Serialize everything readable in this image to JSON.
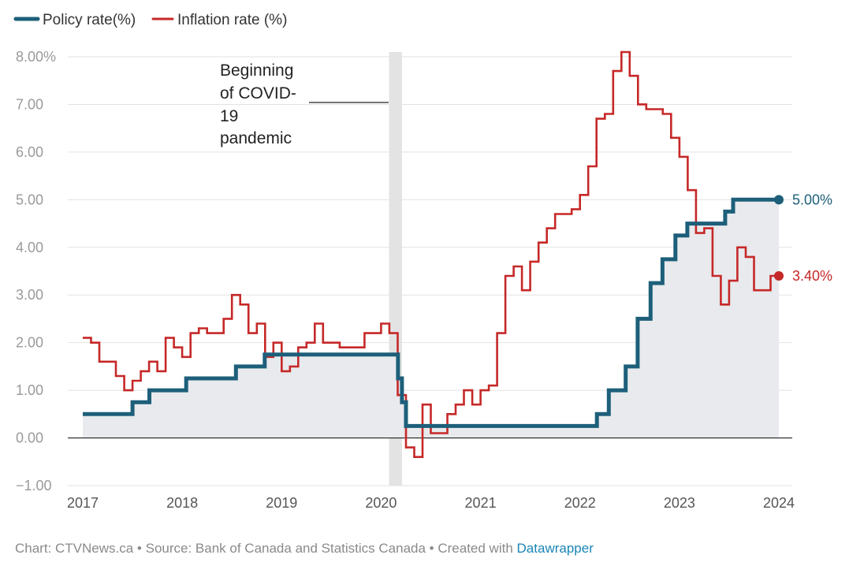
{
  "footer": {
    "credit": "Chart: CTVNews.ca",
    "sep1": " • ",
    "source": "Source: Bank of Canada and Statistics Canada",
    "sep2": " • ",
    "created": "Created with ",
    "tool": "Datawrapper"
  },
  "chart_data": {
    "type": "line",
    "title": "",
    "xlabel": "",
    "ylabel": "",
    "xlim": [
      2017,
      2024
    ],
    "ylim": [
      -1,
      8
    ],
    "x_ticks": [
      2017,
      2018,
      2019,
      2020,
      2021,
      2022,
      2023,
      2024
    ],
    "x_tick_labels": [
      "2017",
      "2018",
      "2019",
      "2020",
      "2021",
      "2022",
      "2023",
      "2024"
    ],
    "y_ticks": [
      8,
      7,
      6,
      5,
      4,
      3,
      2,
      1,
      0,
      -1
    ],
    "y_tick_labels": [
      "8.00%",
      "7.00",
      "6.00",
      "5.00",
      "4.00",
      "3.00",
      "2.00",
      "1.00",
      "0.00",
      "−1.00"
    ],
    "grid": true,
    "legend_position": "top-left",
    "colors": {
      "policy": "#1d5f7a",
      "inflation": "#c62828",
      "fill": "#e8eaed",
      "band": "#e3e3e3"
    },
    "annotation": {
      "lines": [
        "Beginning",
        "of COVID-",
        "19",
        "pandemic"
      ],
      "x_start": 2020.08,
      "x_end": 2020.21
    },
    "series": [
      {
        "name": "Policy rate(%)",
        "color": "#1d5f7a",
        "step": true,
        "points": [
          [
            2017.0,
            0.5
          ],
          [
            2017.5,
            0.75
          ],
          [
            2017.67,
            1.0
          ],
          [
            2018.04,
            1.25
          ],
          [
            2018.54,
            1.5
          ],
          [
            2018.83,
            1.75
          ],
          [
            2020.17,
            1.25
          ],
          [
            2020.21,
            0.75
          ],
          [
            2020.25,
            0.25
          ],
          [
            2022.17,
            0.5
          ],
          [
            2022.29,
            1.0
          ],
          [
            2022.46,
            1.5
          ],
          [
            2022.58,
            2.5
          ],
          [
            2022.71,
            3.25
          ],
          [
            2022.83,
            3.75
          ],
          [
            2022.96,
            4.25
          ],
          [
            2023.08,
            4.5
          ],
          [
            2023.46,
            4.75
          ],
          [
            2023.54,
            5.0
          ],
          [
            2024.0,
            5.0
          ]
        ],
        "end_label": "5.00%"
      },
      {
        "name": "Inflation rate (%)",
        "color": "#c62828",
        "step": true,
        "monthly_start": 2017.0,
        "values": [
          2.1,
          2.0,
          1.6,
          1.6,
          1.3,
          1.0,
          1.2,
          1.4,
          1.6,
          1.4,
          2.1,
          1.9,
          1.7,
          2.2,
          2.3,
          2.2,
          2.2,
          2.5,
          3.0,
          2.8,
          2.2,
          2.4,
          1.7,
          2.0,
          1.4,
          1.5,
          1.9,
          2.0,
          2.4,
          2.0,
          2.0,
          1.9,
          1.9,
          1.9,
          2.2,
          2.2,
          2.4,
          2.2,
          0.9,
          -0.2,
          -0.4,
          0.7,
          0.1,
          0.1,
          0.5,
          0.7,
          1.0,
          0.7,
          1.0,
          1.1,
          2.2,
          3.4,
          3.6,
          3.1,
          3.7,
          4.1,
          4.4,
          4.7,
          4.7,
          4.8,
          5.1,
          5.7,
          6.7,
          6.8,
          7.7,
          8.1,
          7.6,
          7.0,
          6.9,
          6.9,
          6.8,
          6.3,
          5.9,
          5.2,
          4.3,
          4.4,
          3.4,
          2.8,
          3.3,
          4.0,
          3.8,
          3.1,
          3.1,
          3.4,
          3.4
        ],
        "end_label": "3.40%"
      }
    ]
  }
}
